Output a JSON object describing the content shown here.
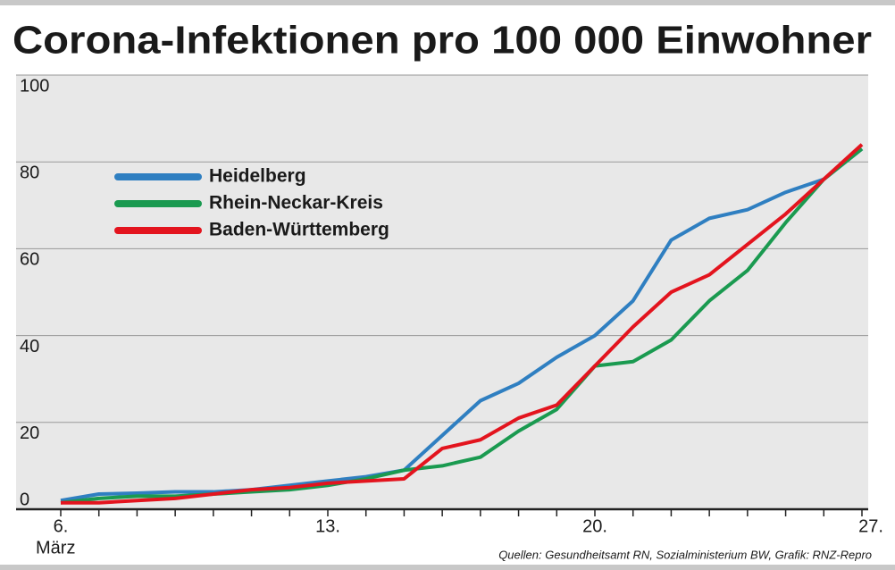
{
  "chart_data": {
    "type": "line",
    "title": "Corona-Infektionen pro 100 000 Einwohner",
    "x_sublabel": "März",
    "source": "Quellen: Gesundheitsamt RN, Sozialministerium BW, Grafik: RNZ-Repro",
    "categories": [
      "6.",
      null,
      null,
      null,
      null,
      null,
      null,
      "13.",
      null,
      null,
      null,
      null,
      null,
      null,
      "20.",
      null,
      null,
      null,
      null,
      null,
      null,
      "27."
    ],
    "series": [
      {
        "name": "Heidelberg",
        "color": "#2f7fc1",
        "values": [
          2,
          3.5,
          3.7,
          4,
          4,
          4.5,
          5.5,
          6.5,
          7.5,
          9,
          17,
          25,
          29,
          35,
          40,
          48,
          62,
          67,
          69,
          73,
          76,
          83
        ]
      },
      {
        "name": "Rhein-Neckar-Kreis",
        "color": "#1a9a50",
        "values": [
          1.5,
          2.5,
          3,
          3,
          3.5,
          4,
          4.5,
          5.5,
          7,
          9,
          10,
          12,
          18,
          23,
          33,
          34,
          39,
          48,
          55,
          66,
          76,
          83
        ]
      },
      {
        "name": "Baden-Württemberg",
        "color": "#e3141e",
        "values": [
          1.5,
          1.5,
          2,
          2.5,
          3.5,
          4.5,
          5,
          6,
          6.5,
          7,
          14,
          16,
          21,
          24,
          33,
          42,
          50,
          54,
          61,
          68,
          76,
          84
        ]
      }
    ],
    "ylim": [
      0,
      100
    ],
    "yticks": [
      0,
      20,
      40,
      60,
      80,
      100
    ],
    "grid": true
  }
}
